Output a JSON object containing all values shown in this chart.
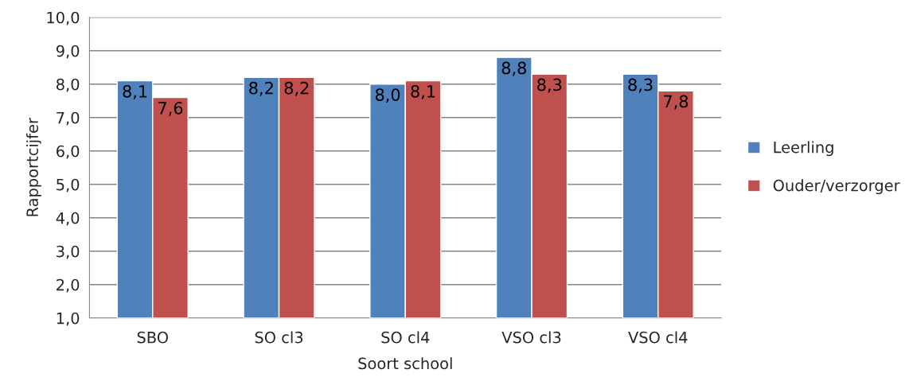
{
  "chart_data": {
    "type": "bar",
    "xlabel": "Soort school",
    "ylabel": "Rapportcijfer",
    "categories": [
      "SBO",
      "SO cl3",
      "SO cl4",
      "VSO cl3",
      "VSO cl4"
    ],
    "series": [
      {
        "name": "Leerling",
        "color": "#4f81bd",
        "values": [
          8.1,
          8.2,
          8.0,
          8.8,
          8.3
        ],
        "value_labels": [
          "8,1",
          "8,2",
          "8,0",
          "8,8",
          "8,3"
        ]
      },
      {
        "name": "Ouder/verzorger",
        "color": "#c0504d",
        "values": [
          7.6,
          8.2,
          8.1,
          8.3,
          7.8
        ],
        "value_labels": [
          "7,6",
          "8,2",
          "8,1",
          "8,3",
          "7,8"
        ]
      }
    ],
    "ylim": [
      1,
      10
    ],
    "yticks": [
      {
        "value": 1,
        "label": "1,0"
      },
      {
        "value": 2,
        "label": "2,0"
      },
      {
        "value": 3,
        "label": "3,0"
      },
      {
        "value": 4,
        "label": "4,0"
      },
      {
        "value": 5,
        "label": "5,0"
      },
      {
        "value": 6,
        "label": "6,0"
      },
      {
        "value": 7,
        "label": "7,0"
      },
      {
        "value": 8,
        "label": "8,0"
      },
      {
        "value": 9,
        "label": "9,0"
      },
      {
        "value": 10,
        "label": "10,0"
      }
    ],
    "grid": "y",
    "legend": "right"
  }
}
